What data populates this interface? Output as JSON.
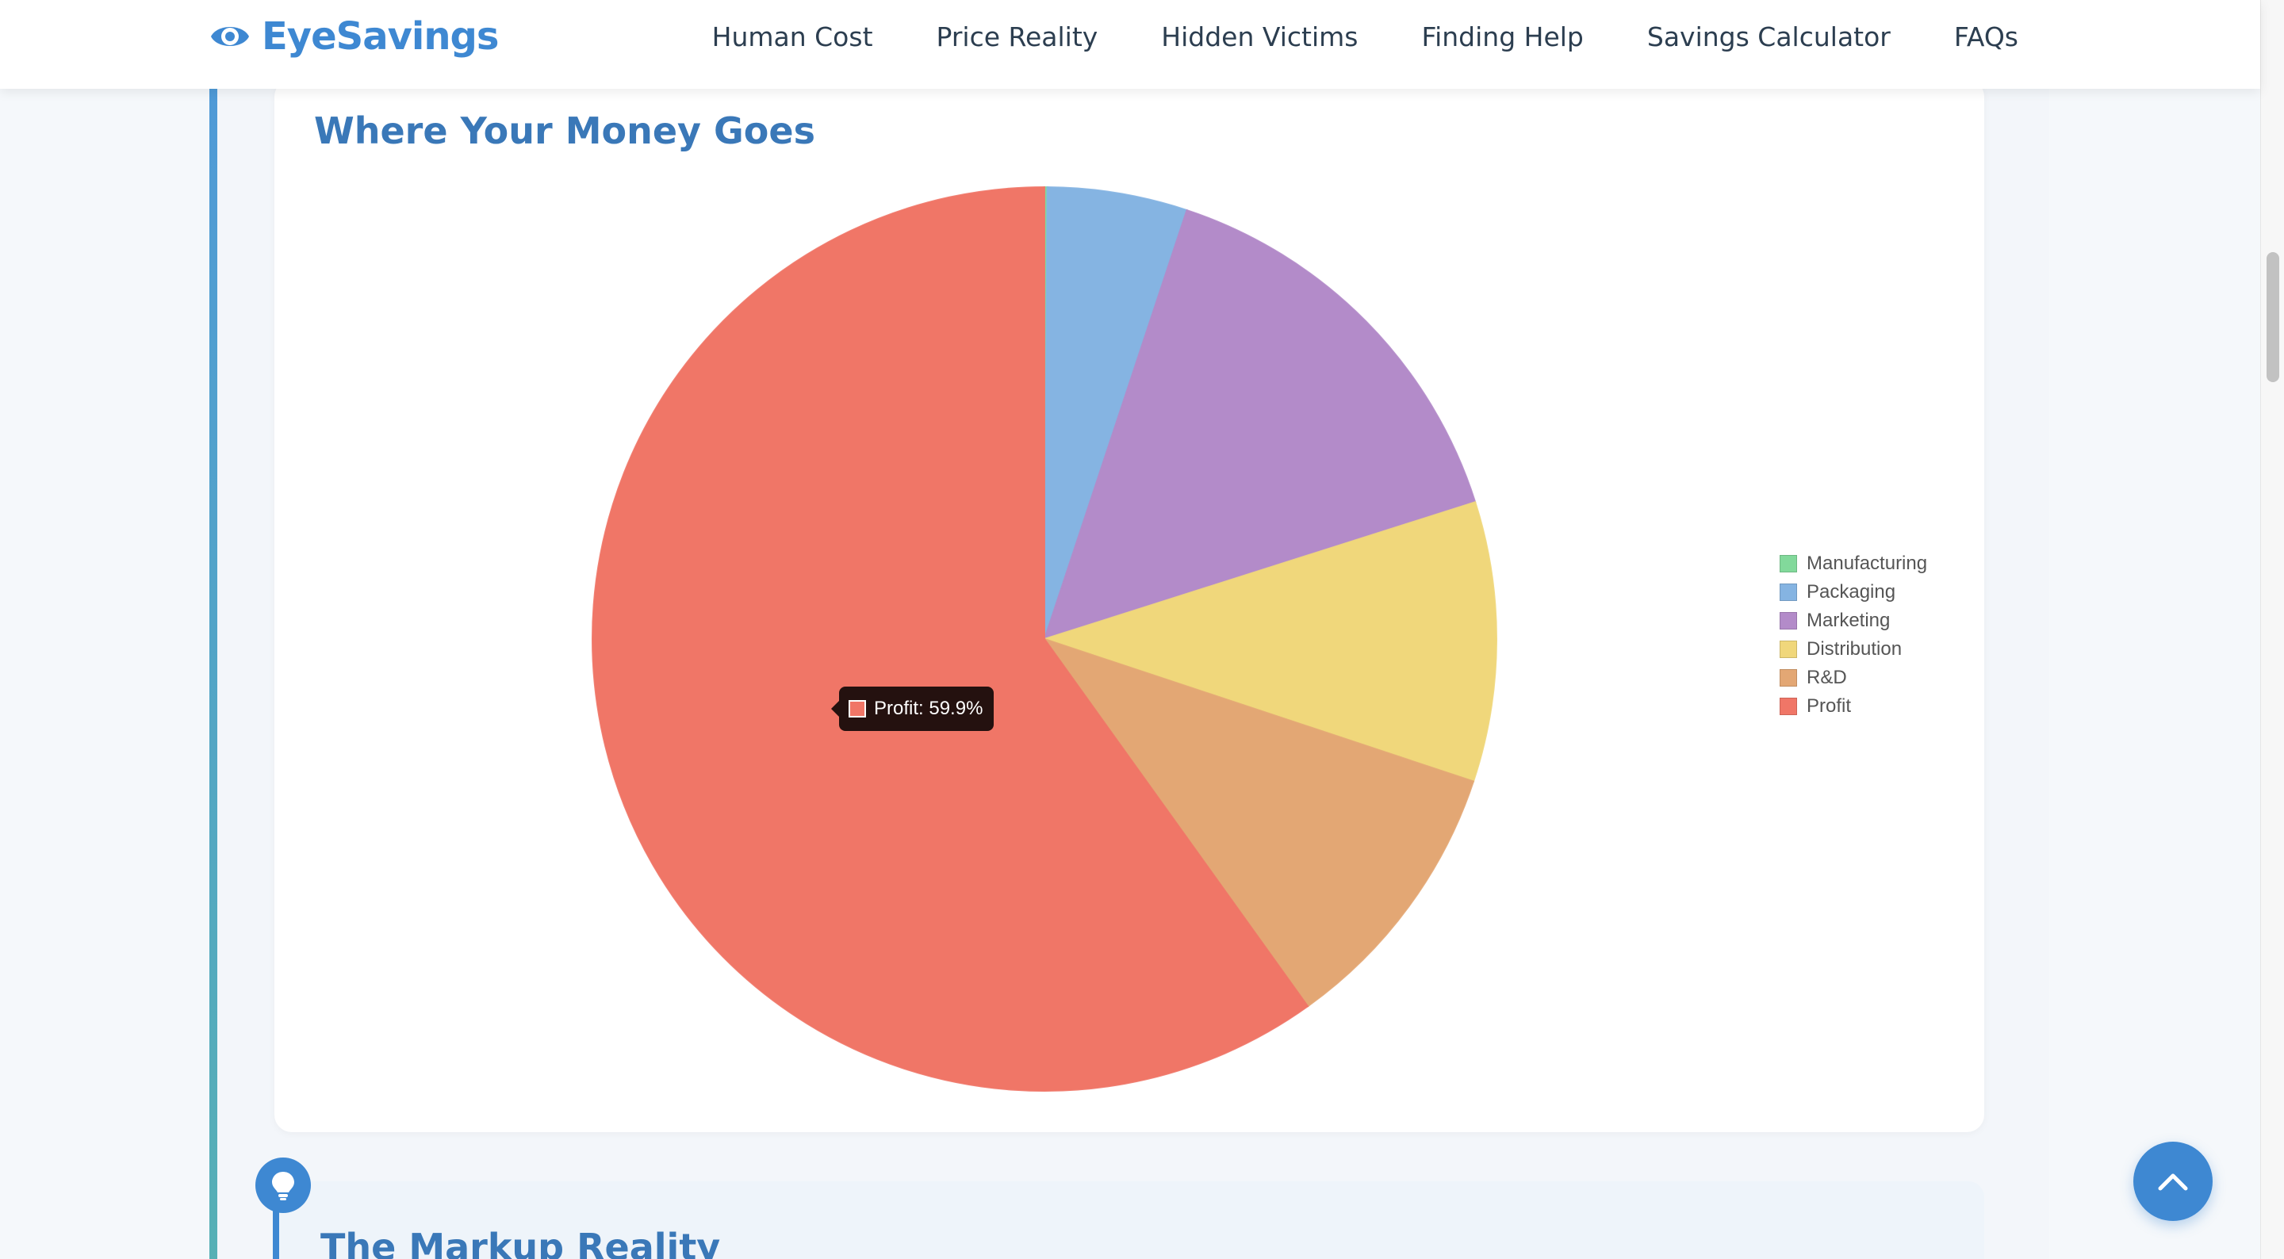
{
  "header": {
    "logo_text": "EyeSavings",
    "nav": [
      "Human Cost",
      "Price Reality",
      "Hidden Victims",
      "Finding Help",
      "Savings Calculator",
      "FAQs"
    ]
  },
  "chart_section": {
    "title": "Where Your Money Goes"
  },
  "chart_data": {
    "type": "pie",
    "categories": [
      "Manufacturing",
      "Packaging",
      "Marketing",
      "Distribution",
      "R&D",
      "Profit"
    ],
    "values": [
      0.1,
      5.0,
      15.0,
      10.0,
      10.0,
      59.9
    ],
    "colors": [
      "#82d99b",
      "#85b4e2",
      "#b38bc9",
      "#f0d77b",
      "#e3a774",
      "#f07667"
    ],
    "legend": "right",
    "tooltip": "Profit: 59.9%"
  },
  "next_section": {
    "title": "The Markup Reality"
  },
  "icons": {
    "logo": "eye-icon",
    "bulb": "lightbulb-icon",
    "back_to_top": "chevron-up-icon"
  }
}
